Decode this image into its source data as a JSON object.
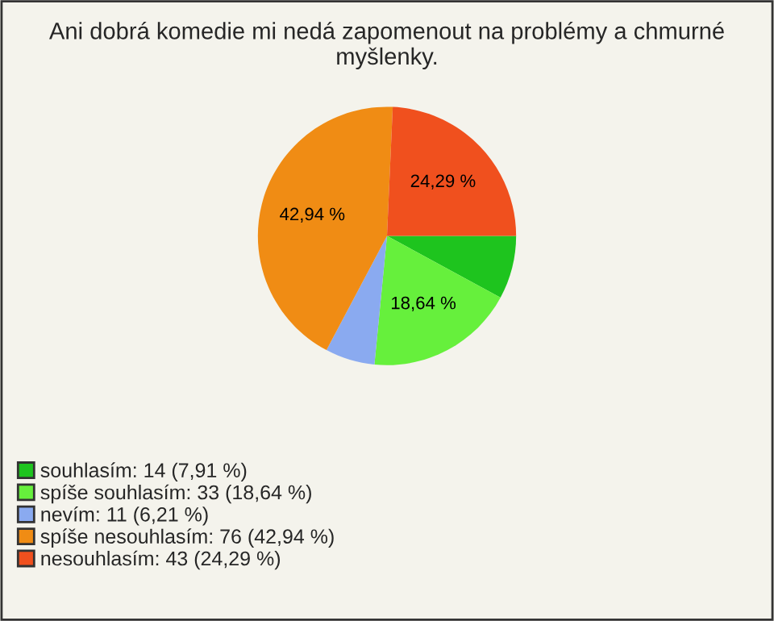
{
  "chart_data": {
    "type": "pie",
    "title": "Ani dobrá komedie mi nedá zapomenout na problémy a chmurné myšlenky.",
    "categories": [
      "souhlasím: 14 (7,91 %)",
      "spíše souhlasím: 33 (18,64 %)",
      "nevím: 11 (6,21 %)",
      "spíše nesouhlasím: 76 (42,94 %)",
      "nesouhlasím: 43 (24,29 %)"
    ],
    "values": [
      7.91,
      18.64,
      6.21,
      42.94,
      24.29
    ],
    "colors": [
      "#1ec41e",
      "#66f03c",
      "#8aaaf0",
      "#f08c14",
      "#f0501e"
    ],
    "value_labels": [
      null,
      "18,64 %",
      null,
      "42,94 %",
      "24,29 %"
    ],
    "legend": "bottom left"
  }
}
